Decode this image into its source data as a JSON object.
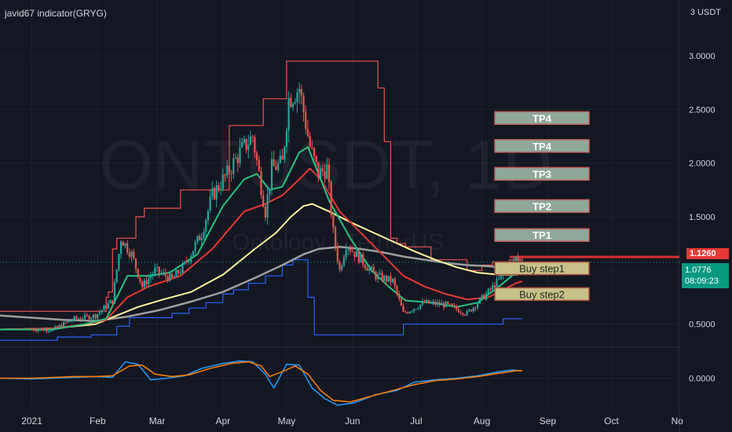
{
  "indicator_title": "javid67 indicator(GRYG)",
  "unit_label": "3 USDT",
  "watermark": {
    "symbol": "ONTUSDT, 1D",
    "name": "Ontology / TetherUS"
  },
  "price_tags": {
    "level": "1.1260",
    "last": "1.0776",
    "countdown": "08:09:23"
  },
  "colors": {
    "background": "#131722",
    "up": "#26a69a",
    "down": "#ef5350",
    "upper_band": "#ef5350",
    "lower_band": "#2962ff",
    "ema_fast": "#26c281",
    "ema_mid": "#e53935",
    "ema_slow": "#fff59d",
    "sma_long": "#9e9e9e",
    "osc_fast": "#2196f3",
    "osc_slow": "#f57c00",
    "level_line": "#d32f2f",
    "tp_box": "#8fa89a",
    "buy_box": "#c8c18a"
  },
  "chart_data": {
    "type": "candlestick",
    "ylabel": "USDT",
    "ylim": [
      0.3,
      3.3
    ],
    "y_ticks": [
      "3.0000",
      "2.5000",
      "2.0000",
      "1.5000",
      "1.0000",
      "0.5000"
    ],
    "y_tick_values": [
      3.0,
      2.5,
      2.0,
      1.5,
      1.0,
      0.5
    ],
    "x_ticks": [
      "2021",
      "Feb",
      "Mar",
      "Apr",
      "May",
      "Jun",
      "Jul",
      "Aug",
      "Sep",
      "Oct",
      "No"
    ],
    "x_tick_days": [
      0,
      31,
      59,
      90,
      120,
      151,
      181,
      212,
      243,
      273,
      304
    ],
    "x_range_days": [
      -15,
      305
    ],
    "last_day": 231,
    "price_path": [
      [
        0,
        0.45
      ],
      [
        10,
        0.45
      ],
      [
        20,
        0.55
      ],
      [
        30,
        0.58
      ],
      [
        38,
        0.72
      ],
      [
        42,
        1.3
      ],
      [
        47,
        1.15
      ],
      [
        52,
        0.85
      ],
      [
        58,
        1.0
      ],
      [
        66,
        0.92
      ],
      [
        72,
        1.05
      ],
      [
        80,
        1.35
      ],
      [
        85,
        1.7
      ],
      [
        92,
        1.9
      ],
      [
        98,
        2.1
      ],
      [
        104,
        2.25
      ],
      [
        110,
        1.55
      ],
      [
        113,
        1.95
      ],
      [
        118,
        2.0
      ],
      [
        121,
        2.6
      ],
      [
        126,
        2.7
      ],
      [
        131,
        2.15
      ],
      [
        135,
        1.9
      ],
      [
        139,
        1.95
      ],
      [
        142,
        1.35
      ],
      [
        145,
        1.0
      ],
      [
        148,
        1.25
      ],
      [
        155,
        1.1
      ],
      [
        162,
        0.95
      ],
      [
        170,
        0.9
      ],
      [
        175,
        0.6
      ],
      [
        185,
        0.7
      ],
      [
        195,
        0.68
      ],
      [
        205,
        0.6
      ],
      [
        215,
        0.8
      ],
      [
        222,
        0.95
      ],
      [
        228,
        1.12
      ],
      [
        231,
        1.08
      ]
    ],
    "upper_band": [
      [
        -15,
        0.62
      ],
      [
        20,
        0.62
      ],
      [
        34,
        0.62
      ],
      [
        35,
        0.75
      ],
      [
        36,
        0.8
      ],
      [
        38,
        1.2
      ],
      [
        40,
        1.3
      ],
      [
        49,
        1.5
      ],
      [
        53,
        1.58
      ],
      [
        68,
        1.58
      ],
      [
        70,
        1.75
      ],
      [
        92,
        1.75
      ],
      [
        93,
        2.35
      ],
      [
        108,
        2.35
      ],
      [
        109,
        2.6
      ],
      [
        119,
        2.6
      ],
      [
        120,
        2.95
      ],
      [
        161,
        2.95
      ],
      [
        163,
        2.7
      ],
      [
        166,
        2.2
      ],
      [
        169,
        1.3
      ],
      [
        172,
        1.25
      ],
      [
        176,
        1.22
      ],
      [
        188,
        1.1
      ],
      [
        198,
        1.1
      ],
      [
        205,
        1.0
      ],
      [
        212,
        1.05
      ],
      [
        217,
        1.08
      ],
      [
        225,
        1.1
      ],
      [
        231,
        1.12
      ]
    ],
    "lower_band": [
      [
        -15,
        0.35
      ],
      [
        0,
        0.35
      ],
      [
        12,
        0.38
      ],
      [
        28,
        0.4
      ],
      [
        38,
        0.4
      ],
      [
        40,
        0.48
      ],
      [
        46,
        0.56
      ],
      [
        58,
        0.56
      ],
      [
        66,
        0.6
      ],
      [
        74,
        0.65
      ],
      [
        82,
        0.7
      ],
      [
        90,
        0.78
      ],
      [
        95,
        0.82
      ],
      [
        102,
        0.88
      ],
      [
        110,
        0.95
      ],
      [
        118,
        1.05
      ],
      [
        123,
        1.1
      ],
      [
        127,
        1.1
      ],
      [
        130,
        0.75
      ],
      [
        132,
        0.75
      ],
      [
        133,
        0.4
      ],
      [
        147,
        0.4
      ],
      [
        150,
        0.4
      ],
      [
        174,
        0.4
      ],
      [
        175,
        0.5
      ],
      [
        220,
        0.5
      ],
      [
        222,
        0.55
      ],
      [
        231,
        0.55
      ]
    ],
    "ema_fast": [
      [
        -15,
        0.45
      ],
      [
        10,
        0.45
      ],
      [
        25,
        0.5
      ],
      [
        35,
        0.55
      ],
      [
        45,
        0.95
      ],
      [
        55,
        0.95
      ],
      [
        65,
        0.98
      ],
      [
        78,
        1.15
      ],
      [
        90,
        1.6
      ],
      [
        100,
        1.85
      ],
      [
        106,
        1.9
      ],
      [
        112,
        1.75
      ],
      [
        118,
        1.78
      ],
      [
        126,
        2.1
      ],
      [
        130,
        2.15
      ],
      [
        134,
        1.95
      ],
      [
        140,
        1.65
      ],
      [
        150,
        1.3
      ],
      [
        160,
        1.0
      ],
      [
        168,
        0.85
      ],
      [
        176,
        0.72
      ],
      [
        188,
        0.7
      ],
      [
        200,
        0.66
      ],
      [
        210,
        0.7
      ],
      [
        220,
        0.85
      ],
      [
        228,
        0.98
      ],
      [
        231,
        1.0
      ]
    ],
    "ema_mid": [
      [
        -15,
        0.45
      ],
      [
        10,
        0.46
      ],
      [
        25,
        0.5
      ],
      [
        35,
        0.54
      ],
      [
        45,
        0.75
      ],
      [
        55,
        0.85
      ],
      [
        70,
        0.95
      ],
      [
        85,
        1.2
      ],
      [
        100,
        1.55
      ],
      [
        110,
        1.62
      ],
      [
        118,
        1.7
      ],
      [
        126,
        1.85
      ],
      [
        131,
        1.95
      ],
      [
        136,
        1.85
      ],
      [
        145,
        1.55
      ],
      [
        155,
        1.35
      ],
      [
        165,
        1.15
      ],
      [
        175,
        0.95
      ],
      [
        185,
        0.85
      ],
      [
        195,
        0.78
      ],
      [
        205,
        0.73
      ],
      [
        215,
        0.75
      ],
      [
        222,
        0.82
      ],
      [
        228,
        0.88
      ],
      [
        231,
        0.9
      ]
    ],
    "ema_slow": [
      [
        -15,
        0.45
      ],
      [
        10,
        0.46
      ],
      [
        30,
        0.5
      ],
      [
        40,
        0.58
      ],
      [
        50,
        0.66
      ],
      [
        62,
        0.73
      ],
      [
        75,
        0.8
      ],
      [
        90,
        0.96
      ],
      [
        105,
        1.2
      ],
      [
        115,
        1.35
      ],
      [
        122,
        1.5
      ],
      [
        128,
        1.6
      ],
      [
        132,
        1.62
      ],
      [
        140,
        1.55
      ],
      [
        150,
        1.45
      ],
      [
        160,
        1.36
      ],
      [
        170,
        1.27
      ],
      [
        180,
        1.18
      ],
      [
        190,
        1.1
      ],
      [
        200,
        1.03
      ],
      [
        210,
        0.98
      ],
      [
        220,
        0.96
      ],
      [
        228,
        0.96
      ],
      [
        231,
        0.97
      ]
    ],
    "sma_long": [
      [
        -15,
        0.58
      ],
      [
        0,
        0.56
      ],
      [
        15,
        0.54
      ],
      [
        30,
        0.53
      ],
      [
        45,
        0.57
      ],
      [
        60,
        0.63
      ],
      [
        75,
        0.71
      ],
      [
        90,
        0.8
      ],
      [
        105,
        0.93
      ],
      [
        118,
        1.05
      ],
      [
        128,
        1.15
      ],
      [
        135,
        1.2
      ],
      [
        145,
        1.22
      ],
      [
        155,
        1.2
      ],
      [
        165,
        1.17
      ],
      [
        175,
        1.13
      ],
      [
        185,
        1.1
      ],
      [
        195,
        1.07
      ],
      [
        205,
        1.05
      ],
      [
        215,
        1.04
      ],
      [
        225,
        1.02
      ],
      [
        231,
        1.0
      ]
    ],
    "level_line": 1.126,
    "last_price": 1.0776,
    "targets": [
      {
        "label": "TP4",
        "price": 2.42
      },
      {
        "label": "TP4",
        "price": 2.16
      },
      {
        "label": "TP3",
        "price": 1.9
      },
      {
        "label": "TP2",
        "price": 1.6
      },
      {
        "label": "TP1",
        "price": 1.33
      }
    ],
    "buy_zones": [
      {
        "label": "Buy step1",
        "price": 1.02
      },
      {
        "label": "Buy step2",
        "price": 0.78
      }
    ],
    "oscillator": {
      "ylim": [
        -0.35,
        0.35
      ],
      "y_ticks": [
        "0.0000"
      ],
      "fast": [
        [
          -15,
          0.0
        ],
        [
          0,
          -0.01
        ],
        [
          10,
          0.0
        ],
        [
          20,
          0.01
        ],
        [
          30,
          0.02
        ],
        [
          38,
          0.01
        ],
        [
          44,
          0.2
        ],
        [
          50,
          0.17
        ],
        [
          56,
          -0.02
        ],
        [
          64,
          0.0
        ],
        [
          72,
          0.03
        ],
        [
          80,
          0.12
        ],
        [
          90,
          0.18
        ],
        [
          98,
          0.21
        ],
        [
          104,
          0.2
        ],
        [
          110,
          0.05
        ],
        [
          114,
          -0.12
        ],
        [
          120,
          0.17
        ],
        [
          126,
          0.16
        ],
        [
          132,
          -0.12
        ],
        [
          138,
          -0.25
        ],
        [
          144,
          -0.33
        ],
        [
          152,
          -0.3
        ],
        [
          162,
          -0.2
        ],
        [
          172,
          -0.15
        ],
        [
          180,
          -0.05
        ],
        [
          190,
          -0.02
        ],
        [
          200,
          0.0
        ],
        [
          210,
          0.03
        ],
        [
          220,
          0.08
        ],
        [
          226,
          0.1
        ],
        [
          231,
          0.09
        ]
      ],
      "slow": [
        [
          -15,
          0.0
        ],
        [
          0,
          0.0
        ],
        [
          10,
          0.01
        ],
        [
          20,
          0.02
        ],
        [
          30,
          0.02
        ],
        [
          38,
          0.03
        ],
        [
          46,
          0.15
        ],
        [
          52,
          0.16
        ],
        [
          58,
          0.05
        ],
        [
          66,
          0.02
        ],
        [
          74,
          0.04
        ],
        [
          84,
          0.12
        ],
        [
          94,
          0.18
        ],
        [
          102,
          0.2
        ],
        [
          108,
          0.15
        ],
        [
          112,
          0.02
        ],
        [
          118,
          0.08
        ],
        [
          124,
          0.15
        ],
        [
          130,
          0.05
        ],
        [
          136,
          -0.15
        ],
        [
          142,
          -0.27
        ],
        [
          150,
          -0.29
        ],
        [
          160,
          -0.22
        ],
        [
          170,
          -0.15
        ],
        [
          180,
          -0.08
        ],
        [
          190,
          -0.03
        ],
        [
          200,
          -0.01
        ],
        [
          210,
          0.02
        ],
        [
          220,
          0.06
        ],
        [
          228,
          0.09
        ],
        [
          231,
          0.09
        ]
      ]
    }
  }
}
